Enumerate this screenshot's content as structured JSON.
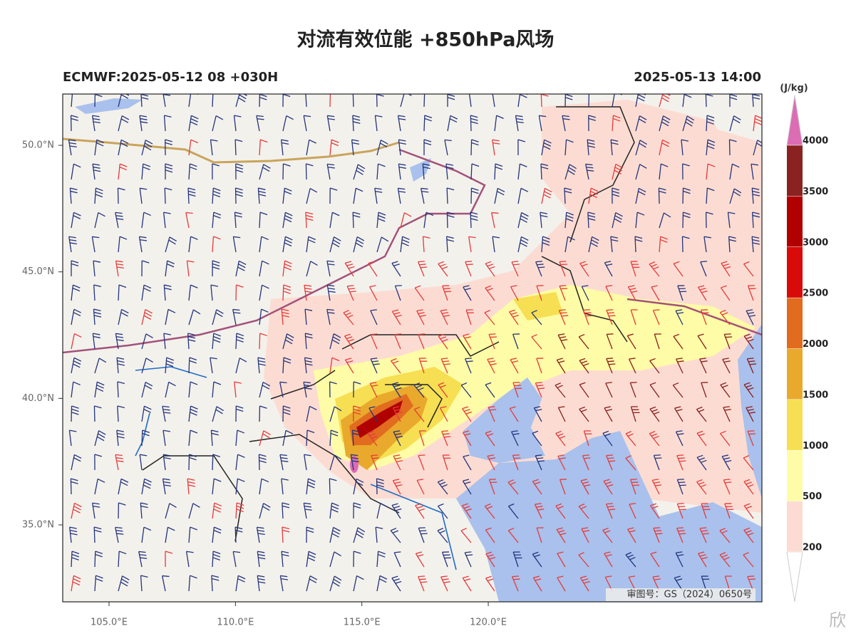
{
  "header": {
    "title": "对流有效位能 +850hPa风场",
    "left": "ECMWF:2025-05-12 08 +030H",
    "right": "2025-05-13 14:00"
  },
  "axes": {
    "lat": [
      {
        "value": 50,
        "label": "50.0°N"
      },
      {
        "value": 45,
        "label": "45.0°N"
      },
      {
        "value": 40,
        "label": "40.0°N"
      },
      {
        "value": 35,
        "label": "35.0°N"
      }
    ],
    "lon": [
      {
        "value": 105,
        "label": "105.0°E"
      },
      {
        "value": 110,
        "label": "110.0°E"
      },
      {
        "value": 115,
        "label": "115.0°E"
      },
      {
        "value": 120,
        "label": "120.0°E"
      }
    ]
  },
  "colorbar": {
    "unit": "(J/kg)",
    "ticks": [
      200,
      500,
      1000,
      1500,
      2000,
      2500,
      3000,
      3500,
      4000
    ],
    "colors": [
      "#fcdcd2",
      "#fefca6",
      "#f6df52",
      "#e9a92c",
      "#e16b1f",
      "#d80a0a",
      "#b00000",
      "#8a2222"
    ],
    "extend_color": "#dc6cb4"
  },
  "map_note": "审图号：GS（2024）0650号",
  "watermark": "欣"
}
